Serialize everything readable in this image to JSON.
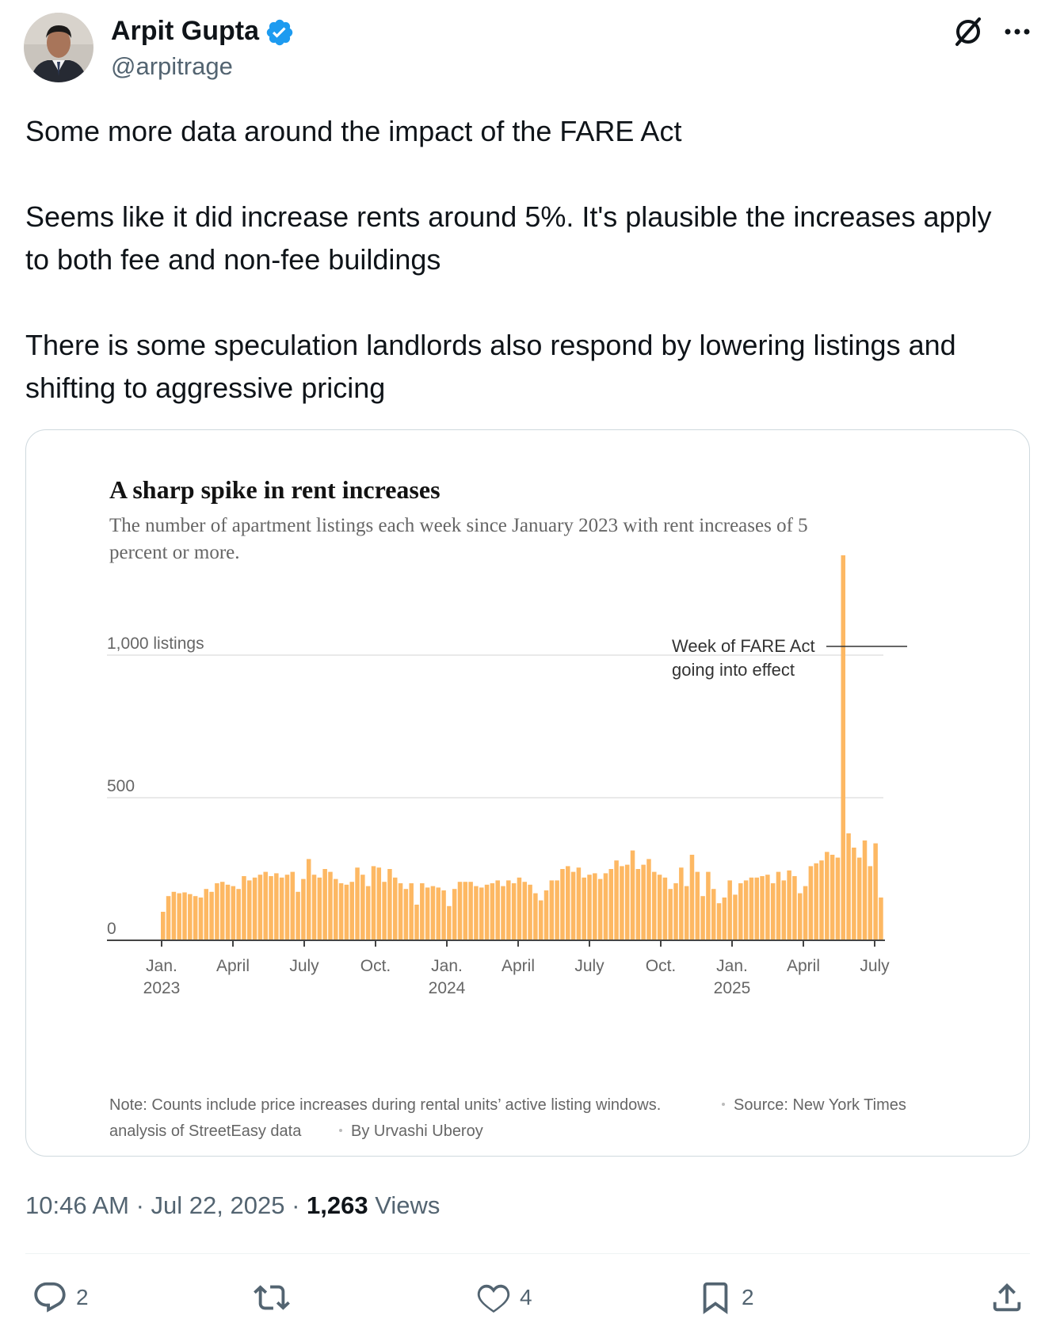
{
  "author": {
    "display_name": "Arpit Gupta",
    "handle": "@arpitrage",
    "verified": true,
    "badge_color": "#1d9bf0"
  },
  "tweet": {
    "lines": [
      "Some more data around the impact of the FARE Act",
      "Seems like it did increase rents around 5%. It's plausible the increases apply",
      "to both fee and non-fee buildings",
      "There is some speculation landlords also respond by lowering listings and",
      "shifting to aggressive pricing"
    ]
  },
  "meta": {
    "time": "10:46 AM",
    "date": "Jul 22, 2025",
    "views_count": "1,263",
    "views_label": "Views"
  },
  "actions": {
    "replies": "2",
    "reposts": "",
    "likes": "4",
    "bookmarks": "2"
  },
  "icons": {
    "header": [
      "grok-icon",
      "more-icon"
    ],
    "actions": [
      "reply-icon",
      "repost-icon",
      "like-icon",
      "bookmark-icon",
      "share-icon"
    ]
  },
  "chart_data": {
    "type": "bar",
    "title": "A sharp spike in rent increases",
    "subtitle_lines": [
      "The number of apartment listings each week since January 2023 with rent increases of 5",
      "percent or more."
    ],
    "bar_color": "#fdb863",
    "ylim": [
      0,
      1350
    ],
    "y_ticks": [
      {
        "value": 0,
        "label": "0"
      },
      {
        "value": 500,
        "label": "500"
      },
      {
        "value": 1000,
        "label": "1,000 listings"
      }
    ],
    "x_ticks": [
      {
        "month": 0,
        "label": "Jan.",
        "year": "2023"
      },
      {
        "month": 3,
        "label": "April",
        "year": ""
      },
      {
        "month": 6,
        "label": "July",
        "year": ""
      },
      {
        "month": 9,
        "label": "Oct.",
        "year": ""
      },
      {
        "month": 12,
        "label": "Jan.",
        "year": "2024"
      },
      {
        "month": 15,
        "label": "April",
        "year": ""
      },
      {
        "month": 18,
        "label": "July",
        "year": ""
      },
      {
        "month": 21,
        "label": "Oct.",
        "year": ""
      },
      {
        "month": 24,
        "label": "Jan.",
        "year": "2025"
      },
      {
        "month": 27,
        "label": "April",
        "year": ""
      },
      {
        "month": 30,
        "label": "July",
        "year": ""
      }
    ],
    "weekly_values": [
      100,
      155,
      170,
      165,
      168,
      162,
      155,
      150,
      180,
      170,
      200,
      205,
      195,
      190,
      180,
      225,
      210,
      220,
      230,
      240,
      225,
      235,
      220,
      230,
      240,
      170,
      215,
      285,
      230,
      220,
      250,
      240,
      215,
      200,
      195,
      205,
      255,
      230,
      190,
      260,
      255,
      205,
      250,
      220,
      200,
      180,
      200,
      125,
      200,
      185,
      190,
      185,
      175,
      120,
      180,
      205,
      205,
      205,
      190,
      185,
      195,
      200,
      210,
      190,
      210,
      200,
      220,
      205,
      195,
      165,
      140,
      175,
      210,
      210,
      250,
      260,
      240,
      255,
      220,
      230,
      235,
      215,
      235,
      250,
      280,
      260,
      265,
      315,
      250,
      265,
      285,
      240,
      230,
      220,
      180,
      200,
      255,
      190,
      300,
      240,
      155,
      240,
      180,
      130,
      150,
      210,
      160,
      200,
      210,
      220,
      220,
      225,
      230,
      200,
      240,
      210,
      245,
      225,
      165,
      190,
      260,
      270,
      280,
      310,
      300,
      290,
      1350,
      375,
      325,
      290,
      350,
      260,
      340,
      150
    ],
    "annotation": {
      "lines": [
        "Week of FARE Act",
        "going into effect"
      ]
    },
    "note": "Note: Counts include price increases during rental units’ active listing windows.",
    "source_part1": "Source: New York Times",
    "source_part2": "analysis of StreetEasy data",
    "byline": "By Urvashi Uberoy"
  }
}
